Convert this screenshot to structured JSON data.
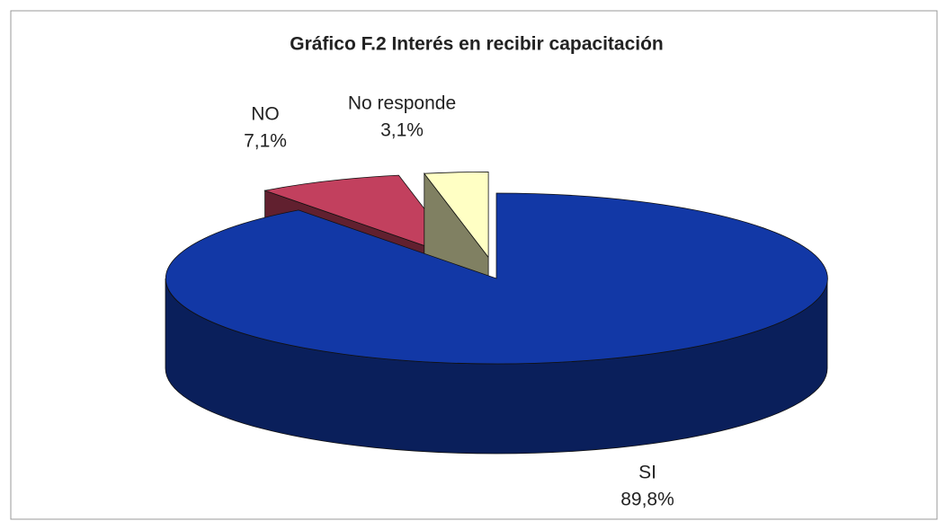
{
  "chart_data": {
    "type": "pie3d",
    "title": "Gráfico F.2 Interés en recibir capacitación",
    "categories": [
      "SI",
      "NO",
      "No responde"
    ],
    "values": [
      89.8,
      7.1,
      3.1
    ],
    "value_labels": [
      "89,8%",
      "7,1%",
      "3,1%"
    ],
    "colors": [
      "#1238a6",
      "#c2405e",
      "#ffffc4"
    ]
  }
}
